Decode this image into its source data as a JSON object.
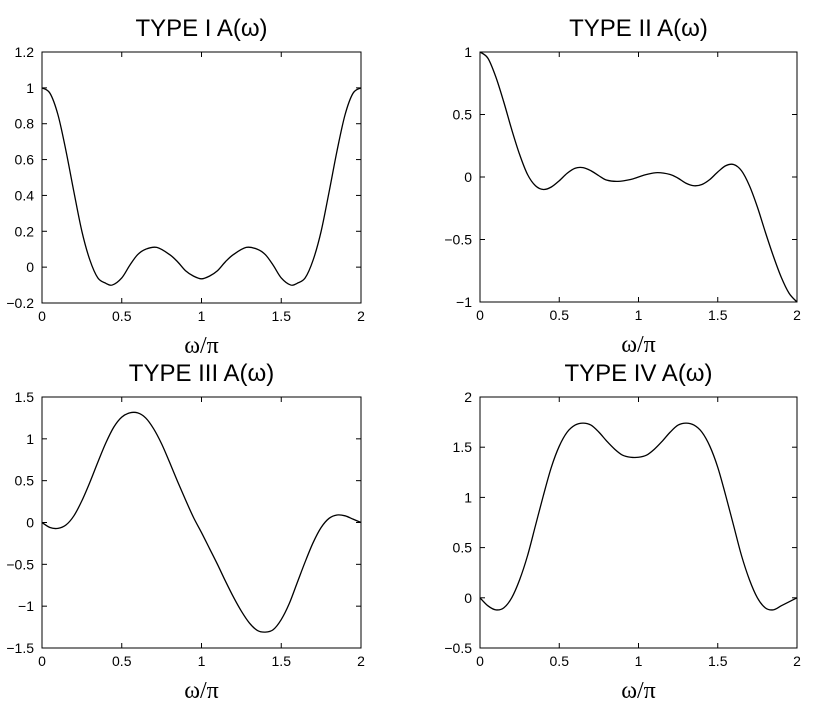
{
  "chart_data": [
    {
      "type": "line",
      "title": "TYPE I A(ω)",
      "xlabel": "ω/π",
      "ylabel": "",
      "xlim": [
        0,
        2
      ],
      "ylim": [
        -0.2,
        1.2
      ],
      "xticks": [
        0,
        0.5,
        1,
        1.5,
        2
      ],
      "xtick_labels": [
        "0",
        "0.5",
        "1",
        "1.5",
        "2"
      ],
      "yticks": [
        -0.2,
        0,
        0.2,
        0.4,
        0.6,
        0.8,
        1,
        1.2
      ],
      "ytick_labels": [
        "−0.2",
        "0",
        "0.2",
        "0.4",
        "0.6",
        "0.8",
        "1",
        "1.2"
      ],
      "grid": false,
      "series": [
        {
          "x": [
            0,
            0.05,
            0.1,
            0.15,
            0.2,
            0.25,
            0.3,
            0.35,
            0.4,
            0.44,
            0.5,
            0.55,
            0.6,
            0.65,
            0.72,
            0.8,
            0.85,
            0.9,
            0.95,
            1.0,
            1.05,
            1.1,
            1.15,
            1.2,
            1.28,
            1.35,
            1.4,
            1.45,
            1.5,
            1.56,
            1.6,
            1.65,
            1.7,
            1.75,
            1.8,
            1.85,
            1.9,
            1.95,
            2.0
          ],
          "y": [
            1.0,
            0.97,
            0.85,
            0.65,
            0.42,
            0.2,
            0.04,
            -0.06,
            -0.09,
            -0.1,
            -0.06,
            0.01,
            0.07,
            0.1,
            0.11,
            0.07,
            0.03,
            -0.02,
            -0.05,
            -0.065,
            -0.05,
            -0.02,
            0.03,
            0.07,
            0.11,
            0.1,
            0.07,
            0.01,
            -0.06,
            -0.1,
            -0.09,
            -0.06,
            0.04,
            0.2,
            0.42,
            0.65,
            0.85,
            0.97,
            1.0
          ]
        }
      ]
    },
    {
      "type": "line",
      "title": "TYPE II A(ω)",
      "xlabel": "ω/π",
      "ylabel": "",
      "xlim": [
        0,
        2
      ],
      "ylim": [
        -1,
        1
      ],
      "xticks": [
        0,
        0.5,
        1,
        1.5,
        2
      ],
      "xtick_labels": [
        "0",
        "0.5",
        "1",
        "1.5",
        "2"
      ],
      "yticks": [
        -1,
        -0.5,
        0,
        0.5,
        1
      ],
      "ytick_labels": [
        "−1",
        "−0.5",
        "0",
        "0.5",
        "1"
      ],
      "grid": false,
      "series": [
        {
          "x": [
            0,
            0.05,
            0.1,
            0.15,
            0.2,
            0.25,
            0.3,
            0.35,
            0.4,
            0.45,
            0.5,
            0.55,
            0.6,
            0.65,
            0.7,
            0.75,
            0.8,
            0.87,
            0.95,
            1.0,
            1.05,
            1.12,
            1.2,
            1.25,
            1.3,
            1.35,
            1.4,
            1.45,
            1.5,
            1.55,
            1.6,
            1.65,
            1.7,
            1.75,
            1.8,
            1.85,
            1.9,
            1.95,
            2.0
          ],
          "y": [
            1.0,
            0.95,
            0.8,
            0.6,
            0.38,
            0.18,
            0.02,
            -0.07,
            -0.1,
            -0.08,
            -0.03,
            0.03,
            0.07,
            0.075,
            0.05,
            0.01,
            -0.025,
            -0.035,
            -0.02,
            0.0,
            0.02,
            0.035,
            0.02,
            -0.01,
            -0.05,
            -0.07,
            -0.06,
            -0.02,
            0.04,
            0.09,
            0.1,
            0.05,
            -0.07,
            -0.24,
            -0.44,
            -0.63,
            -0.8,
            -0.93,
            -1.0
          ]
        }
      ]
    },
    {
      "type": "line",
      "title": "TYPE III A(ω)",
      "xlabel": "ω/π",
      "ylabel": "",
      "xlim": [
        0,
        2
      ],
      "ylim": [
        -1.5,
        1.5
      ],
      "xticks": [
        0,
        0.5,
        1,
        1.5,
        2
      ],
      "xtick_labels": [
        "0",
        "0.5",
        "1",
        "1.5",
        "2"
      ],
      "yticks": [
        -1.5,
        -1,
        -0.5,
        0,
        0.5,
        1,
        1.5
      ],
      "ytick_labels": [
        "−1.5",
        "−1",
        "−0.5",
        "0",
        "0.5",
        "1",
        "1.5"
      ],
      "grid": false,
      "series": [
        {
          "x": [
            0,
            0.05,
            0.1,
            0.15,
            0.2,
            0.25,
            0.3,
            0.35,
            0.4,
            0.45,
            0.5,
            0.55,
            0.6,
            0.65,
            0.7,
            0.75,
            0.8,
            0.85,
            0.9,
            0.95,
            1.0,
            1.05,
            1.1,
            1.15,
            1.2,
            1.25,
            1.3,
            1.35,
            1.4,
            1.45,
            1.5,
            1.55,
            1.6,
            1.65,
            1.7,
            1.75,
            1.8,
            1.85,
            1.9,
            1.95,
            2.0
          ],
          "y": [
            0.0,
            -0.06,
            -0.07,
            -0.03,
            0.08,
            0.26,
            0.48,
            0.72,
            0.95,
            1.14,
            1.26,
            1.31,
            1.31,
            1.25,
            1.12,
            0.94,
            0.72,
            0.49,
            0.27,
            0.06,
            -0.12,
            -0.31,
            -0.5,
            -0.7,
            -0.89,
            -1.06,
            -1.2,
            -1.29,
            -1.31,
            -1.28,
            -1.16,
            -0.97,
            -0.72,
            -0.47,
            -0.24,
            -0.06,
            0.05,
            0.09,
            0.08,
            0.04,
            0.0
          ]
        }
      ]
    },
    {
      "type": "line",
      "title": "TYPE IV A(ω)",
      "xlabel": "ω/π",
      "ylabel": "",
      "xlim": [
        0,
        2
      ],
      "ylim": [
        -0.5,
        2
      ],
      "xticks": [
        0,
        0.5,
        1,
        1.5,
        2
      ],
      "xtick_labels": [
        "0",
        "0.5",
        "1",
        "1.5",
        "2"
      ],
      "yticks": [
        -0.5,
        0,
        0.5,
        1,
        1.5,
        2
      ],
      "ytick_labels": [
        "−0.5",
        "0",
        "0.5",
        "1",
        "1.5",
        "2"
      ],
      "grid": false,
      "series": [
        {
          "x": [
            0,
            0.05,
            0.1,
            0.15,
            0.2,
            0.25,
            0.3,
            0.35,
            0.4,
            0.45,
            0.5,
            0.55,
            0.6,
            0.65,
            0.7,
            0.75,
            0.8,
            0.85,
            0.9,
            0.95,
            1.0,
            1.05,
            1.1,
            1.15,
            1.2,
            1.25,
            1.3,
            1.35,
            1.4,
            1.45,
            1.5,
            1.55,
            1.6,
            1.65,
            1.7,
            1.75,
            1.8,
            1.85,
            1.9,
            1.95,
            2.0
          ],
          "y": [
            0.0,
            -0.08,
            -0.12,
            -0.1,
            0.0,
            0.18,
            0.42,
            0.72,
            1.02,
            1.3,
            1.51,
            1.65,
            1.72,
            1.74,
            1.72,
            1.65,
            1.56,
            1.48,
            1.42,
            1.4,
            1.4,
            1.42,
            1.48,
            1.56,
            1.65,
            1.72,
            1.74,
            1.72,
            1.65,
            1.51,
            1.3,
            1.02,
            0.72,
            0.42,
            0.18,
            0.0,
            -0.1,
            -0.12,
            -0.08,
            -0.04,
            0.0
          ]
        }
      ]
    }
  ]
}
